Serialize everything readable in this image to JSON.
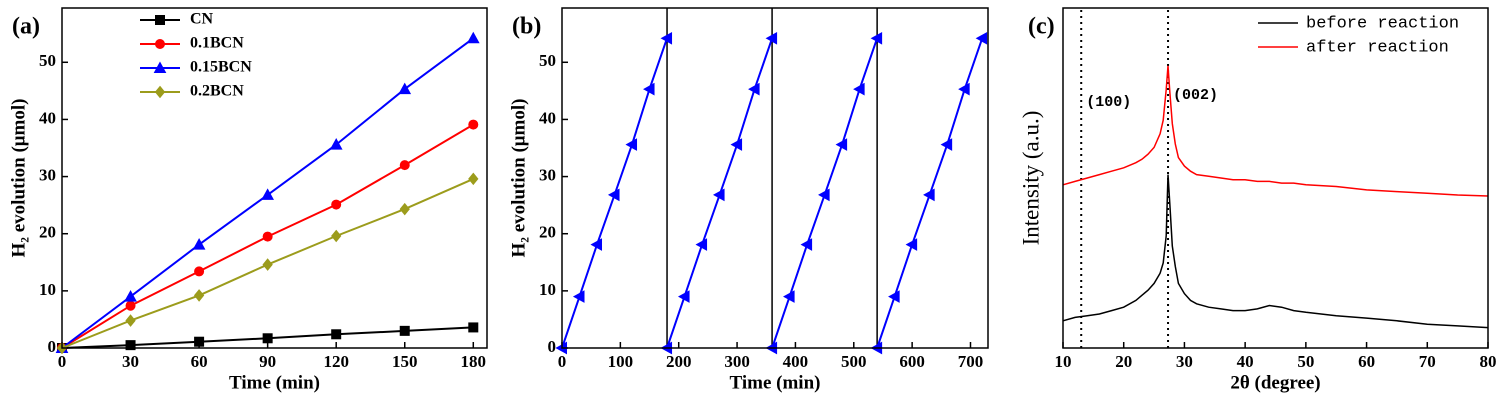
{
  "chart_data": [
    {
      "type": "line",
      "panel_label": "(a)",
      "x_label": "Time (min)",
      "y_label": "H₂ evolution (μmol)",
      "x": [
        0,
        30,
        60,
        90,
        120,
        150,
        180
      ],
      "xlim": [
        0,
        186
      ],
      "xticks": [
        0,
        30,
        60,
        90,
        120,
        150,
        180
      ],
      "ylim": [
        0,
        59.5
      ],
      "yticks": [
        0,
        10,
        20,
        30,
        40,
        50
      ],
      "legend": "upper-left",
      "series": [
        {
          "name": "CN",
          "color": "#000000",
          "marker": "square",
          "values": [
            0,
            0.5,
            1.1,
            1.7,
            2.4,
            3.0,
            3.6
          ]
        },
        {
          "name": "0.1BCN",
          "color": "#ff0000",
          "marker": "circle",
          "values": [
            0,
            7.4,
            13.4,
            19.5,
            25.1,
            32.0,
            39.1
          ]
        },
        {
          "name": "0.15BCN",
          "color": "#0000ff",
          "marker": "triangle",
          "values": [
            0,
            9.0,
            18.1,
            26.8,
            35.6,
            45.3,
            54.2
          ]
        },
        {
          "name": "0.2BCN",
          "color": "#9c9c1c",
          "marker": "diamond",
          "values": [
            0,
            4.8,
            9.2,
            14.6,
            19.6,
            24.3,
            29.6
          ]
        }
      ]
    },
    {
      "type": "line",
      "panel_label": "(b)",
      "x_label": "Time (min)",
      "y_label": "H₂ evolution (μmol)",
      "xlim": [
        0,
        730
      ],
      "xticks": [
        0,
        100,
        200,
        300,
        400,
        500,
        600,
        700
      ],
      "ylim": [
        0,
        59.5
      ],
      "yticks": [
        0,
        10,
        20,
        30,
        40,
        50
      ],
      "cycle_boundaries": [
        180,
        360,
        540
      ],
      "series": [
        {
          "color": "#0000ff",
          "marker": "triangle-left",
          "x": [
            0,
            30,
            60,
            90,
            120,
            150,
            180
          ],
          "values": [
            0,
            9.0,
            18.1,
            26.8,
            35.6,
            45.3,
            54.2
          ]
        },
        {
          "color": "#0000ff",
          "marker": "triangle-left",
          "x": [
            180,
            210,
            240,
            270,
            300,
            330,
            360
          ],
          "values": [
            0,
            9.0,
            18.1,
            26.8,
            35.6,
            45.3,
            54.2
          ]
        },
        {
          "color": "#0000ff",
          "marker": "triangle-left",
          "x": [
            360,
            390,
            420,
            450,
            480,
            510,
            540
          ],
          "values": [
            0,
            9.0,
            18.1,
            26.8,
            35.6,
            45.3,
            54.2
          ]
        },
        {
          "color": "#0000ff",
          "marker": "triangle-left",
          "x": [
            540,
            570,
            600,
            630,
            660,
            690,
            720
          ],
          "values": [
            0,
            9.0,
            18.1,
            26.8,
            35.6,
            45.3,
            54.2
          ]
        }
      ]
    },
    {
      "type": "line",
      "panel_label": "(c)",
      "x_label": "2θ (degree)",
      "y_label": "Intensity (a.u.)",
      "x": [
        10,
        12,
        14,
        16,
        18,
        20,
        22,
        23,
        24,
        25,
        26,
        26.5,
        27,
        27.3,
        27.6,
        28,
        28.5,
        29,
        30,
        31,
        32,
        34,
        36,
        38,
        40,
        42,
        44,
        46,
        48,
        50,
        55,
        60,
        65,
        70,
        75,
        80
      ],
      "xlim": [
        10,
        80
      ],
      "xticks": [
        10,
        20,
        30,
        40,
        50,
        60,
        70,
        80
      ],
      "ylim": [
        0,
        100
      ],
      "legend": "upper-right",
      "reference_lines": [
        {
          "value": 13,
          "label": "(100)"
        },
        {
          "value": 27.3,
          "label": "(002)"
        }
      ],
      "series": [
        {
          "name": "before reaction",
          "color": "#000000",
          "values": [
            8,
            9,
            9.5,
            10,
            11,
            12,
            14,
            15.5,
            17,
            19,
            22,
            25,
            33,
            51,
            42,
            30,
            24,
            19,
            16,
            14,
            13,
            12,
            11.5,
            11,
            11,
            11.5,
            12.5,
            12,
            11,
            10.5,
            9.5,
            8.8,
            8,
            7,
            6.5,
            6
          ]
        },
        {
          "name": "after reaction",
          "color": "#ff0000",
          "values": [
            48,
            49,
            50,
            51,
            52,
            53,
            54.5,
            55.5,
            57,
            59,
            63,
            67,
            76,
            83,
            75,
            66,
            60,
            56,
            53.5,
            52,
            51,
            50.5,
            50,
            49.5,
            49.5,
            49,
            49,
            48.5,
            48.5,
            48,
            47.5,
            46.5,
            46,
            45.5,
            45,
            44.7
          ]
        }
      ]
    }
  ]
}
